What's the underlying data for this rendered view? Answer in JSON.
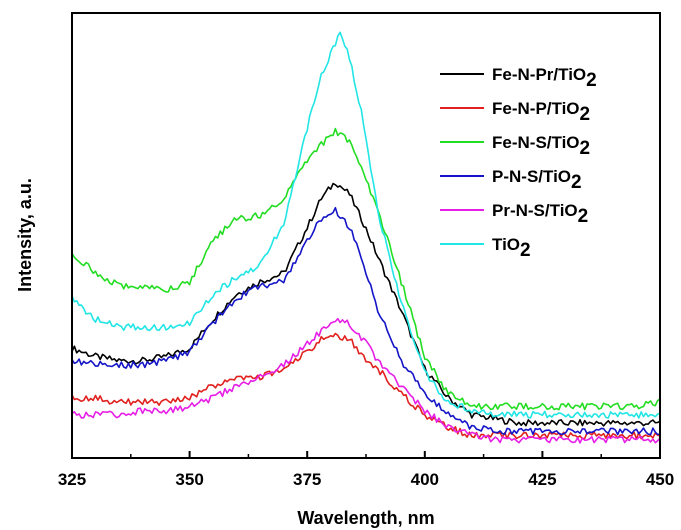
{
  "chart_data": {
    "type": "line",
    "title": "",
    "xlabel": "Wavelength, nm",
    "ylabel": "Intensity, a.u.",
    "xlim": [
      325,
      450
    ],
    "ylim": [
      0,
      100
    ],
    "y_ticks_labeled": false,
    "x_ticks": [
      "325",
      "350",
      "375",
      "400",
      "425",
      "450"
    ],
    "legend_position": "top-right",
    "grid": false,
    "series": [
      {
        "name": "Fe-N-Pr/TiO2",
        "legend_main": "Fe-N-Pr/TiO",
        "legend_sub": "2",
        "color": "#000000",
        "x": [
          325,
          330,
          335,
          340,
          345,
          350,
          355,
          360,
          365,
          370,
          375,
          378,
          381,
          384,
          387,
          390,
          395,
          400,
          405,
          410,
          415,
          420,
          425,
          430,
          435,
          440,
          445,
          450
        ],
        "y": [
          24,
          22,
          21,
          21,
          22,
          24,
          31,
          37,
          40,
          42,
          53,
          60,
          64,
          61,
          54,
          46,
          33,
          19,
          12,
          8,
          7,
          6,
          6,
          6,
          6,
          6,
          6,
          6
        ]
      },
      {
        "name": "Fe-N-P/TiO2",
        "legend_main": "Fe-N-P/TiO",
        "legend_sub": "2",
        "color": "#e0211e",
        "x": [
          325,
          330,
          335,
          340,
          345,
          350,
          355,
          360,
          365,
          370,
          375,
          378,
          381,
          384,
          387,
          390,
          395,
          400,
          405,
          410,
          415,
          420,
          425,
          430,
          435,
          440,
          445,
          450
        ],
        "y": [
          12,
          12,
          11,
          11,
          11,
          12,
          15,
          17,
          17,
          19,
          23,
          26,
          27,
          26,
          22,
          19,
          13,
          8,
          5,
          3,
          3,
          3,
          3,
          3,
          3,
          3,
          3,
          3
        ]
      },
      {
        "name": "Fe-N-S/TiO2",
        "legend_main": "Fe-N-S/TiO",
        "legend_sub": "2",
        "color": "#22dd22",
        "x": [
          325,
          330,
          335,
          340,
          345,
          350,
          355,
          360,
          365,
          370,
          375,
          378,
          381,
          384,
          387,
          390,
          395,
          400,
          405,
          410,
          415,
          420,
          425,
          430,
          435,
          440,
          445,
          450
        ],
        "y": [
          47,
          42,
          39,
          39,
          38,
          40,
          50,
          55,
          56,
          60,
          69,
          73,
          76,
          74,
          66,
          57,
          40,
          22,
          13,
          10,
          10,
          10,
          10,
          10,
          10,
          10,
          10,
          11
        ]
      },
      {
        "name": "P-N-S/TiO2",
        "legend_main": "P-N-S/TiO",
        "legend_sub": "2",
        "color": "#1515c8",
        "x": [
          325,
          330,
          335,
          340,
          345,
          350,
          355,
          360,
          365,
          370,
          375,
          378,
          381,
          384,
          387,
          390,
          395,
          400,
          405,
          410,
          415,
          420,
          425,
          430,
          435,
          440,
          445,
          450
        ],
        "y": [
          21,
          20,
          20,
          20,
          21,
          23,
          30,
          36,
          39,
          40,
          50,
          55,
          57,
          53,
          44,
          33,
          21,
          13,
          8,
          5,
          4,
          4,
          4,
          4,
          4,
          4,
          4,
          4
        ]
      },
      {
        "name": "Pr-N-S/TiO2",
        "legend_main": "Pr-N-S/TiO",
        "legend_sub": "2",
        "color": "#e61ee6",
        "x": [
          325,
          330,
          335,
          340,
          345,
          350,
          355,
          360,
          365,
          370,
          375,
          378,
          381,
          384,
          387,
          390,
          395,
          400,
          405,
          410,
          415,
          420,
          425,
          430,
          435,
          440,
          445,
          450
        ],
        "y": [
          8,
          8,
          8,
          9,
          9,
          10,
          12,
          15,
          17,
          20,
          25,
          28,
          31,
          30,
          26,
          21,
          15,
          9,
          5,
          3,
          2,
          2,
          2,
          2,
          2,
          2,
          2,
          2
        ]
      },
      {
        "name": "TiO2",
        "legend_main": "TiO",
        "legend_sub": "2",
        "color": "#22e5e5",
        "x": [
          325,
          330,
          335,
          340,
          345,
          350,
          355,
          360,
          365,
          370,
          375,
          378,
          381,
          382,
          384,
          387,
          390,
          395,
          400,
          405,
          410,
          415,
          420,
          425,
          430,
          435,
          440,
          445,
          450
        ],
        "y": [
          36,
          31,
          29,
          29,
          29,
          30,
          37,
          41,
          44,
          54,
          77,
          90,
          97,
          100,
          94,
          78,
          57,
          35,
          18,
          11,
          9,
          8,
          8,
          8,
          8,
          8,
          8,
          8,
          8
        ]
      }
    ]
  }
}
